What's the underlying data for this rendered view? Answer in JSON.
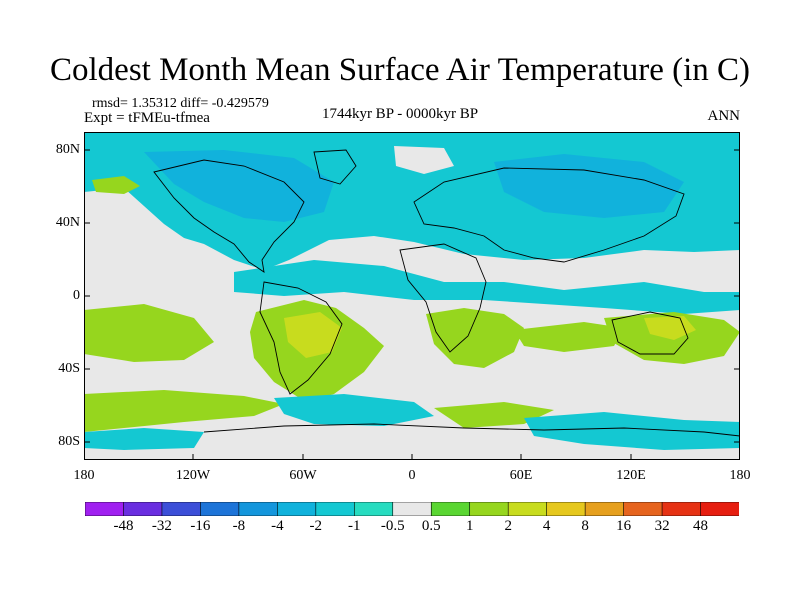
{
  "title": "Coldest Month Mean Surface Air Temperature (in C)",
  "stats": "rmsd= 1.35312 diff= -0.429579",
  "experiment": "Expt = tFMEu-tfmea",
  "period": "1744kyr BP - 0000kyr BP",
  "season": "ANN",
  "lat_labels": [
    "80N",
    "40N",
    "0",
    "40S",
    "80S"
  ],
  "lon_labels": [
    "180",
    "120W",
    "60W",
    "0",
    "60E",
    "120E",
    "180"
  ],
  "colorbar": {
    "labels": [
      "-48",
      "-32",
      "-16",
      "-8",
      "-4",
      "-2",
      "-1",
      "-0.5",
      "0.5",
      "1",
      "2",
      "4",
      "8",
      "16",
      "32",
      "48"
    ],
    "colors": [
      "#a020f0",
      "#6a2ee0",
      "#3c4fd8",
      "#1d74d8",
      "#1496dc",
      "#11b2dc",
      "#14c8d2",
      "#27dcc0",
      "#e8e8e8",
      "#5ad632",
      "#96d61e",
      "#c8dc1e",
      "#e6c81e",
      "#e6a01e",
      "#e6641e",
      "#e63214",
      "#e61e10"
    ]
  },
  "colors": {
    "neutral": "#e8e8e8",
    "cool": "#14c8d2",
    "cooler": "#11b2dc",
    "warm": "#96d61e",
    "warmer": "#c8dc1e"
  }
}
